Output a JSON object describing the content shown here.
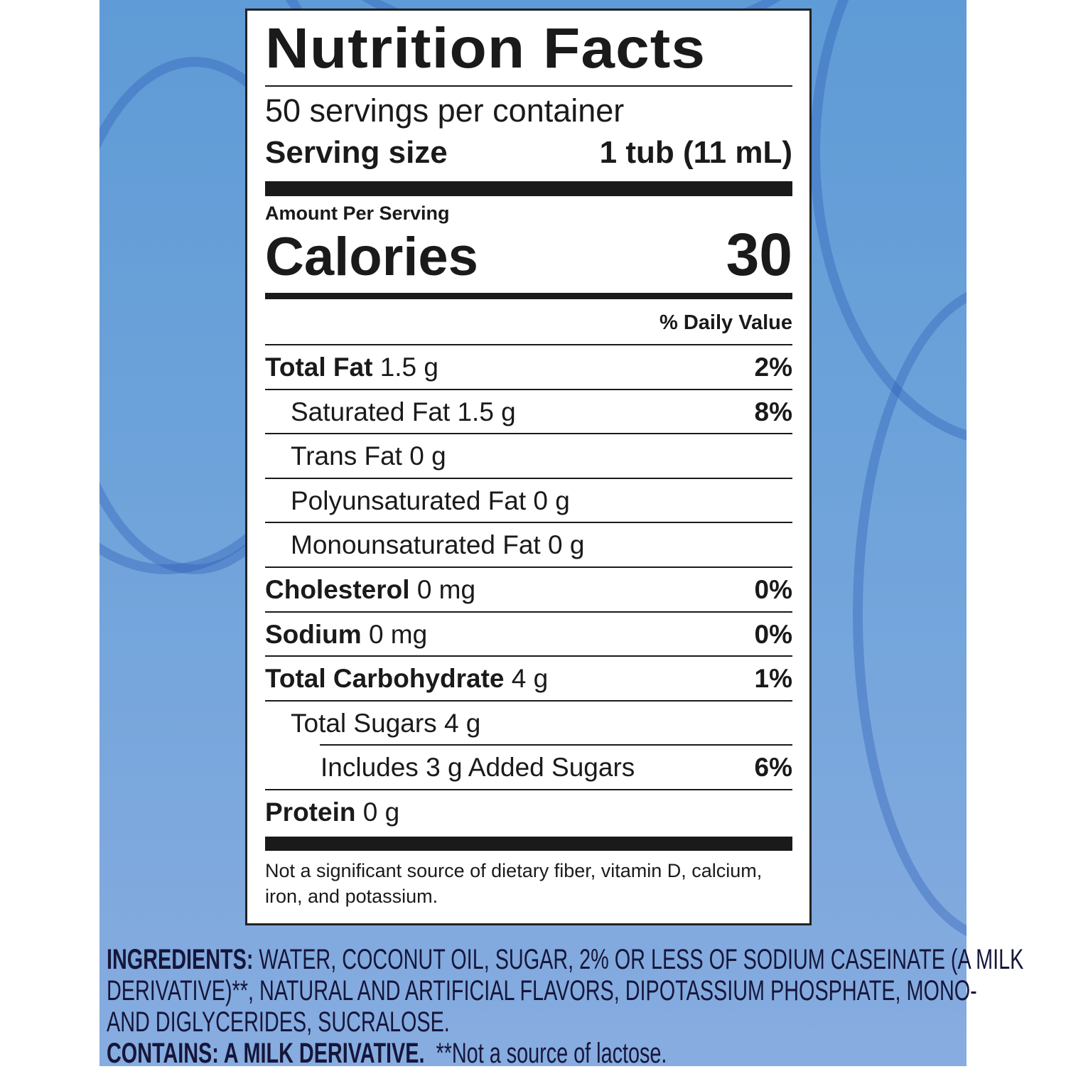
{
  "label": {
    "title": "Nutrition Facts",
    "servings_per_container": "50 servings per container",
    "serving_size_label": "Serving size",
    "serving_size_value": "1 tub (11 mL)",
    "amount_per_serving": "Amount Per Serving",
    "calories_label": "Calories",
    "calories_value": "30",
    "daily_value_header": "% Daily Value",
    "rows": [
      {
        "name": "Total Fat",
        "amount": "1.5 g",
        "dv": "2%",
        "bold": true,
        "indent": 0
      },
      {
        "name": "Saturated Fat",
        "amount": "1.5 g",
        "dv": "8%",
        "bold": false,
        "indent": 1
      },
      {
        "name": "Trans Fat",
        "amount": "0 g",
        "dv": "",
        "bold": false,
        "indent": 1
      },
      {
        "name": "Polyunsaturated Fat",
        "amount": "0 g",
        "dv": "",
        "bold": false,
        "indent": 1
      },
      {
        "name": "Monounsaturated Fat",
        "amount": "0 g",
        "dv": "",
        "bold": false,
        "indent": 1
      },
      {
        "name": "Cholesterol",
        "amount": "0 mg",
        "dv": "0%",
        "bold": true,
        "indent": 0
      },
      {
        "name": "Sodium",
        "amount": "0 mg",
        "dv": "0%",
        "bold": true,
        "indent": 0
      },
      {
        "name": "Total Carbohydrate",
        "amount": "4 g",
        "dv": "1%",
        "bold": true,
        "indent": 0
      },
      {
        "name": "Total Sugars",
        "amount": "4 g",
        "dv": "",
        "bold": false,
        "indent": 1
      },
      {
        "name": "Includes 3 g Added Sugars",
        "amount": "",
        "dv": "6%",
        "bold": false,
        "indent": 2
      },
      {
        "name": "Protein",
        "amount": "0 g",
        "dv": "",
        "bold": true,
        "indent": 0
      }
    ],
    "footnote": "Not a significant source of dietary fiber, vitamin D, calcium, iron, and potassium."
  },
  "ingredients": {
    "label": "INGREDIENTS:",
    "line1": "WATER, COCONUT OIL, SUGAR, 2% OR LESS OF SODIUM CASEINATE (A MILK",
    "line2": "DERIVATIVE)**, NATURAL AND ARTIFICIAL FLAVORS, DIPOTASSIUM PHOSPHATE, MONO-",
    "line3": "AND DIGLYCERIDES, SUCRALOSE.",
    "contains_label": "CONTAINS: A MILK DERIVATIVE.",
    "contains_note": "**Not a source of lactose."
  },
  "colors": {
    "background_blue": "#6ea3da",
    "text": "#1a1a1a"
  }
}
